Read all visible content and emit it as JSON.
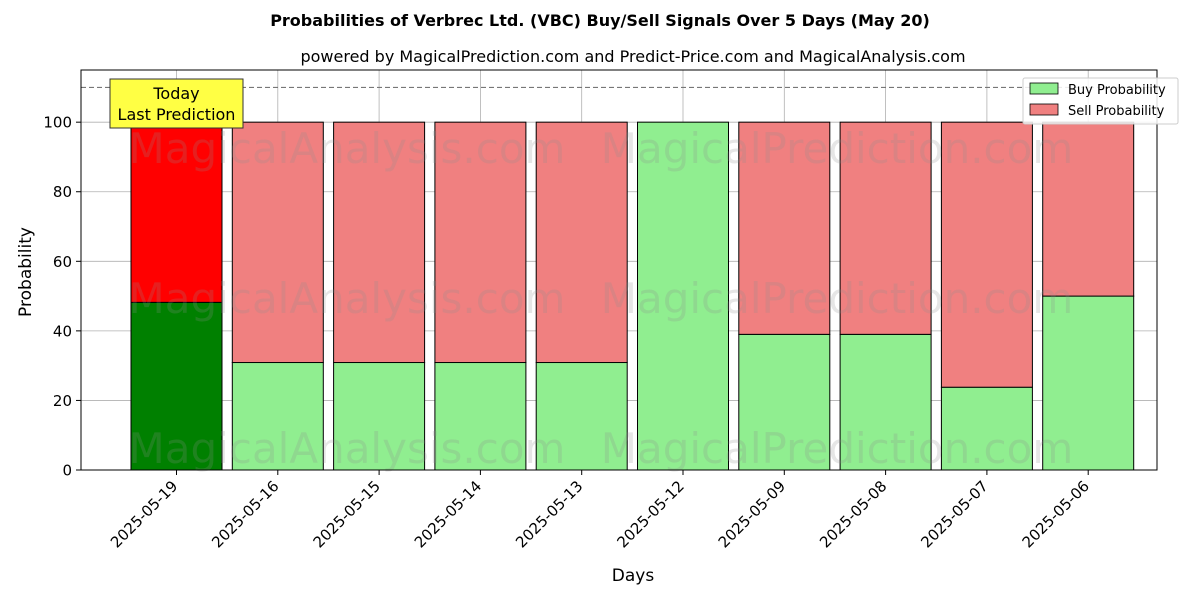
{
  "colors": {
    "today_buy": "#008000",
    "today_sell": "#ff0000",
    "buy": "#90ee90",
    "sell": "#f08080",
    "annotation_bg": "#ffff44"
  },
  "watermarks": [
    "MagicalAnalysis.com",
    "MagicalPrediction.com"
  ],
  "chart_data": {
    "type": "bar",
    "stacked": true,
    "title": "Probabilities of Verbrec Ltd. (VBC) Buy/Sell Signals Over 5 Days (May 20)",
    "subtitle": "powered by MagicalPrediction.com and Predict-Price.com and MagicalAnalysis.com",
    "xlabel": "Days",
    "ylabel": "Probability",
    "ylim": [
      0,
      115
    ],
    "yticks": [
      0,
      20,
      40,
      60,
      80,
      100
    ],
    "grid": true,
    "legend_position": "top-right",
    "reference_line": 110,
    "categories": [
      "2025-05-19",
      "2025-05-16",
      "2025-05-15",
      "2025-05-14",
      "2025-05-13",
      "2025-05-12",
      "2025-05-09",
      "2025-05-08",
      "2025-05-07",
      "2025-05-06"
    ],
    "series": [
      {
        "name": "Buy Probability",
        "values": [
          48.2,
          30.9,
          30.9,
          30.9,
          30.9,
          100,
          39,
          39,
          23.8,
          50
        ]
      },
      {
        "name": "Sell Probability",
        "values": [
          51.8,
          69.1,
          69.1,
          69.1,
          69.1,
          0,
          61,
          61,
          76.2,
          50
        ]
      }
    ],
    "annotation": {
      "line1": "Today",
      "line2": "Last Prediction"
    }
  }
}
